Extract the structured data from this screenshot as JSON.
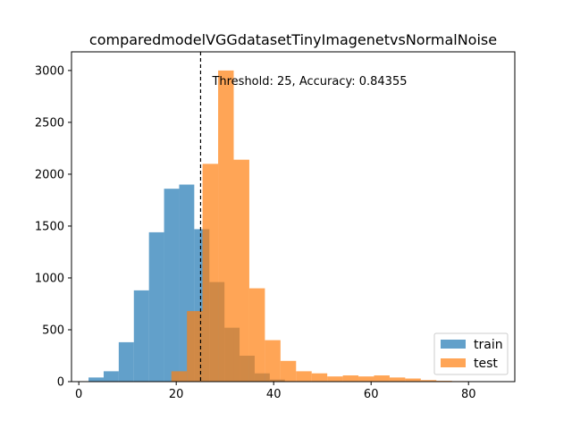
{
  "chart_data": {
    "type": "histogram",
    "title": "comparedmodelVGGdatasetTinyImagenetvsNormalNoise",
    "xlabel": "",
    "ylabel": "",
    "xlim": [
      -1.5,
      89.5
    ],
    "ylim": [
      0,
      3180
    ],
    "xticks": [
      0,
      20,
      40,
      60,
      80
    ],
    "yticks": [
      0,
      500,
      1000,
      1500,
      2000,
      2500,
      3000
    ],
    "grid": false,
    "legend_position": "lower-right",
    "threshold": {
      "x": 25,
      "label": "Threshold: 25, Accuracy: 0.84355"
    },
    "series": [
      {
        "name": "train",
        "color": "#1f77b4",
        "opacity": 0.7,
        "bin_edges": [
          2,
          5.1,
          8.2,
          11.3,
          14.4,
          17.5,
          20.6,
          23.7,
          26.8,
          29.9,
          33.0,
          36.1,
          39.2,
          42.3
        ],
        "counts": [
          40,
          100,
          380,
          880,
          1440,
          1860,
          1900,
          1470,
          960,
          520,
          250,
          80,
          20
        ]
      },
      {
        "name": "test",
        "color": "#ff7f0e",
        "opacity": 0.7,
        "bin_edges": [
          19,
          22.2,
          25.4,
          28.6,
          31.8,
          35.0,
          38.2,
          41.4,
          44.6,
          47.8,
          51.0,
          54.2,
          57.4,
          60.6,
          63.8,
          67.0,
          70.2,
          73.4,
          76.6,
          79.8
        ],
        "counts": [
          100,
          680,
          2100,
          3000,
          2140,
          900,
          400,
          200,
          100,
          80,
          50,
          60,
          50,
          60,
          40,
          30,
          15,
          8,
          5
        ]
      }
    ]
  }
}
